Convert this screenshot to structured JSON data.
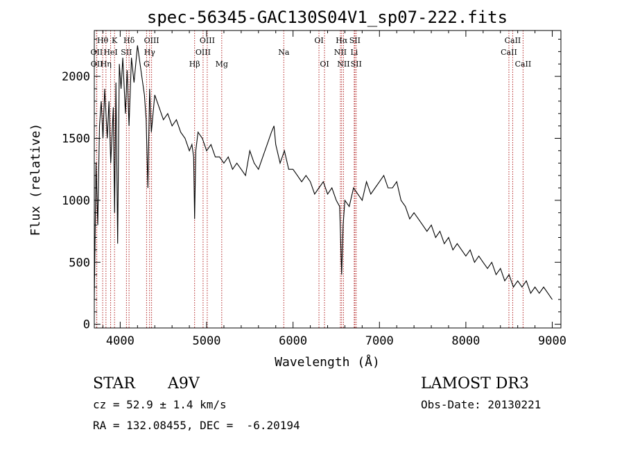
{
  "chart_data": {
    "type": "line",
    "title": "spec-56345-GAC130S04V1_sp07-222.fits",
    "xlabel": "Wavelength (Å)",
    "ylabel": "Flux (relative)",
    "xlim": [
      3700,
      9100
    ],
    "ylim": [
      -30,
      2370
    ],
    "xticks": [
      4000,
      5000,
      6000,
      7000,
      8000,
      9000
    ],
    "xtick_labels": [
      "4000",
      "5000",
      "6000",
      "7000",
      "8000",
      "9000"
    ],
    "yticks": [
      0,
      500,
      1000,
      1500,
      2000
    ],
    "ytick_labels": [
      "0",
      "500",
      "1000",
      "1500",
      "2000"
    ],
    "grid": false,
    "series": [
      {
        "name": "flux",
        "x": [
          3700,
          3720,
          3740,
          3760,
          3780,
          3800,
          3820,
          3850,
          3870,
          3890,
          3920,
          3935,
          3950,
          3970,
          3990,
          4010,
          4030,
          4060,
          4080,
          4102,
          4130,
          4160,
          4200,
          4250,
          4280,
          4300,
          4320,
          4340,
          4360,
          4400,
          4450,
          4500,
          4550,
          4600,
          4650,
          4700,
          4750,
          4800,
          4830,
          4850,
          4861,
          4875,
          4900,
          4950,
          5000,
          5050,
          5100,
          5150,
          5200,
          5250,
          5300,
          5350,
          5400,
          5450,
          5500,
          5550,
          5600,
          5650,
          5700,
          5750,
          5780,
          5800,
          5850,
          5900,
          5950,
          6000,
          6050,
          6100,
          6150,
          6200,
          6250,
          6300,
          6350,
          6400,
          6450,
          6500,
          6540,
          6563,
          6580,
          6600,
          6650,
          6700,
          6750,
          6800,
          6850,
          6900,
          6950,
          7000,
          7050,
          7100,
          7150,
          7200,
          7250,
          7300,
          7350,
          7400,
          7450,
          7500,
          7550,
          7600,
          7650,
          7700,
          7750,
          7800,
          7850,
          7900,
          7950,
          8000,
          8050,
          8100,
          8150,
          8200,
          8250,
          8300,
          8350,
          8400,
          8450,
          8500,
          8550,
          8600,
          8650,
          8700,
          8750,
          8800,
          8850,
          8900,
          8950,
          9000
        ],
        "y": [
          200,
          1300,
          800,
          1600,
          1800,
          1500,
          1900,
          1500,
          1800,
          1300,
          1750,
          900,
          1950,
          650,
          2100,
          1900,
          2150,
          1700,
          2050,
          1600,
          2150,
          1950,
          2250,
          2000,
          1850,
          1650,
          1100,
          1900,
          1550,
          1850,
          1750,
          1650,
          1700,
          1600,
          1650,
          1550,
          1500,
          1400,
          1450,
          1350,
          850,
          1400,
          1550,
          1500,
          1400,
          1450,
          1350,
          1350,
          1300,
          1350,
          1250,
          1300,
          1250,
          1200,
          1400,
          1300,
          1250,
          1350,
          1450,
          1550,
          1600,
          1450,
          1300,
          1400,
          1250,
          1250,
          1200,
          1150,
          1200,
          1150,
          1050,
          1100,
          1150,
          1050,
          1100,
          1000,
          950,
          400,
          800,
          1000,
          950,
          1100,
          1050,
          1000,
          1150,
          1050,
          1100,
          1150,
          1200,
          1100,
          1100,
          1150,
          1000,
          950,
          850,
          900,
          850,
          800,
          750,
          800,
          700,
          750,
          650,
          700,
          600,
          650,
          600,
          550,
          600,
          500,
          550,
          500,
          450,
          500,
          400,
          450,
          350,
          400,
          300,
          350,
          300,
          350,
          250,
          300,
          250,
          300,
          250,
          200
        ]
      }
    ],
    "line_labels": [
      {
        "label": "Hθ",
        "x": 3797,
        "row": 1
      },
      {
        "label": "OII",
        "x": 3727,
        "row": 2
      },
      {
        "label": "OII",
        "x": 3729,
        "row": 3
      },
      {
        "label": "K",
        "x": 3934,
        "row": 1
      },
      {
        "label": "HeI",
        "x": 3889,
        "row": 2
      },
      {
        "label": "Hη",
        "x": 3835,
        "row": 3
      },
      {
        "label": "Hδ",
        "x": 4102,
        "row": 1
      },
      {
        "label": "SII",
        "x": 4072,
        "row": 2
      },
      {
        "label": "OIII",
        "x": 4363,
        "row": 1
      },
      {
        "label": "Hγ",
        "x": 4340,
        "row": 2
      },
      {
        "label": "G",
        "x": 4305,
        "row": 3
      },
      {
        "label": "OIII",
        "x": 5007,
        "row": 1
      },
      {
        "label": "OIII",
        "x": 4959,
        "row": 2
      },
      {
        "label": "Hβ",
        "x": 4861,
        "row": 3
      },
      {
        "label": "Mg",
        "x": 5175,
        "row": 3
      },
      {
        "label": "Na",
        "x": 5893,
        "row": 2
      },
      {
        "label": "OI",
        "x": 6300,
        "row": 1
      },
      {
        "label": "OI",
        "x": 6364,
        "row": 3
      },
      {
        "label": "Hα",
        "x": 6563,
        "row": 1
      },
      {
        "label": "SII",
        "x": 6716,
        "row": 1
      },
      {
        "label": "NII",
        "x": 6548,
        "row": 2
      },
      {
        "label": "Li",
        "x": 6708,
        "row": 2
      },
      {
        "label": "NII",
        "x": 6584,
        "row": 3
      },
      {
        "label": "SII",
        "x": 6731,
        "row": 3
      },
      {
        "label": "CaII",
        "x": 8542,
        "row": 1
      },
      {
        "label": "CaII",
        "x": 8498,
        "row": 2
      },
      {
        "label": "CaII",
        "x": 8662,
        "row": 3
      }
    ],
    "line_color": "#000000",
    "marker_color": "#b22222"
  },
  "info": {
    "object_class": "STAR",
    "subclass": "A9V",
    "survey": "LAMOST DR3",
    "cz": "cz = 52.9 ± 1.4 km/s",
    "obs_date": "Obs-Date: 20130221",
    "coords": "RA = 132.08455, DEC =  -6.20194"
  }
}
